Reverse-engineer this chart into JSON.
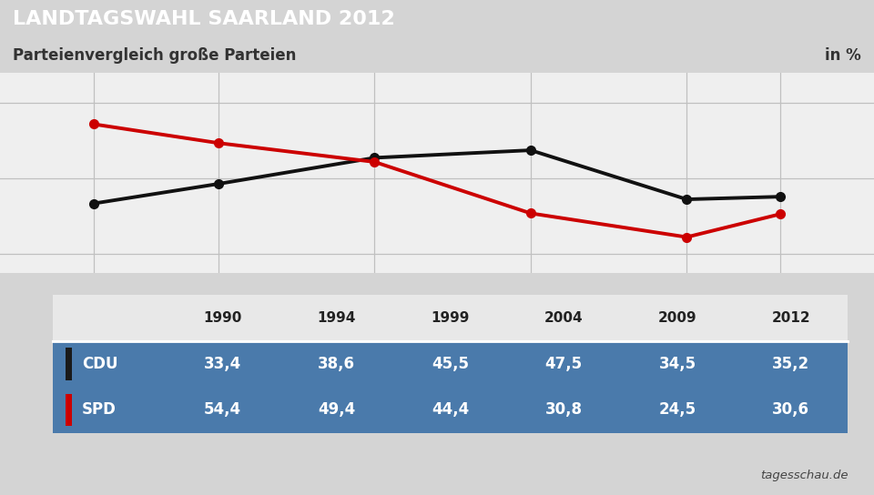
{
  "title": "LANDTAGSWAHL SAARLAND 2012",
  "subtitle": "Parteienvergleich große Parteien",
  "unit_label": "in %",
  "source": "tagesschau.de",
  "years": [
    1990,
    1994,
    1999,
    2004,
    2009,
    2012
  ],
  "series": [
    {
      "name": "CDU",
      "values": [
        33.4,
        38.6,
        45.5,
        47.5,
        34.5,
        35.2
      ],
      "color": "#111111",
      "bar_color": "#1a1a1a"
    },
    {
      "name": "SPD",
      "values": [
        54.4,
        49.4,
        44.4,
        30.8,
        24.5,
        30.6
      ],
      "color": "#cc0000",
      "bar_color": "#cc0000"
    }
  ],
  "ylim": [
    15,
    68
  ],
  "yticks": [
    20,
    40,
    60
  ],
  "title_bg": "#1b3a6e",
  "title_color": "#ffffff",
  "subtitle_bg": "#f0f0f0",
  "subtitle_color": "#333333",
  "table_row_bg": "#4a7aab",
  "table_header_bg": "#e8e8e8",
  "table_text_light": "#ffffff",
  "table_text_dark": "#222222",
  "chart_bg": "#efefef",
  "outer_bg": "#d4d4d4",
  "grid_color": "#c0c0c0"
}
